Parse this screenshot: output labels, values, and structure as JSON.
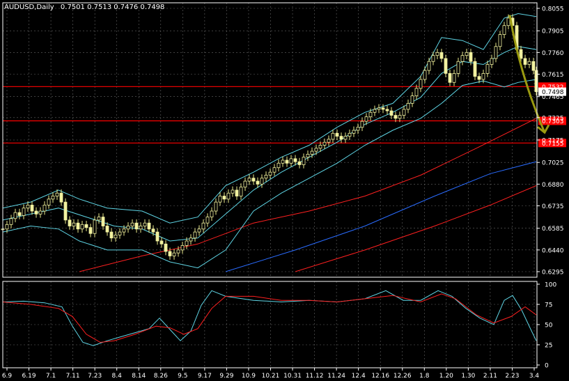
{
  "chart_data": {
    "type": "candlestick",
    "symbol_label": "AUDUSD,Daily",
    "ohlc_label": "0.7501 0.7513 0.7476 0.7498",
    "y_ticks": [
      "0.8055",
      "0.7905",
      "0.7760",
      "0.7615",
      "0.7465",
      "0.7325",
      "0.7175",
      "0.7025",
      "0.6880",
      "0.6735",
      "0.6585",
      "0.6440",
      "0.6295"
    ],
    "ylim": [
      0.6295,
      0.8055
    ],
    "x_ticks": [
      "6.9",
      "6.19",
      "7.1",
      "7.11",
      "7.23",
      "8.4",
      "8.14",
      "8.26",
      "9.5",
      "9.17",
      "9.29",
      "10.9",
      "10.21",
      "10.31",
      "11.12",
      "11.24",
      "12.4",
      "12.16",
      "12.26",
      "1.8",
      "1.20",
      "1.30",
      "2.11",
      "2.23",
      "3.4"
    ],
    "current_price": "0.7498",
    "levels": [
      {
        "label": "0.7532",
        "value": 0.7532,
        "color": "#ff0000"
      },
      {
        "label": "0.7303",
        "value": 0.7303,
        "color": "#ff0000"
      },
      {
        "label": "0.7155",
        "value": 0.7155,
        "color": "#ff0000"
      }
    ],
    "price_series": [
      {
        "x": 0,
        "y": 0.658
      },
      {
        "x": 6,
        "y": 0.661
      },
      {
        "x": 12,
        "y": 0.665
      },
      {
        "x": 18,
        "y": 0.669
      },
      {
        "x": 24,
        "y": 0.667
      },
      {
        "x": 30,
        "y": 0.672
      },
      {
        "x": 36,
        "y": 0.674
      },
      {
        "x": 42,
        "y": 0.67
      },
      {
        "x": 48,
        "y": 0.668
      },
      {
        "x": 54,
        "y": 0.67
      },
      {
        "x": 60,
        "y": 0.674
      },
      {
        "x": 66,
        "y": 0.678
      },
      {
        "x": 72,
        "y": 0.68
      },
      {
        "x": 78,
        "y": 0.682
      },
      {
        "x": 84,
        "y": 0.676
      },
      {
        "x": 90,
        "y": 0.664
      },
      {
        "x": 96,
        "y": 0.66
      },
      {
        "x": 102,
        "y": 0.662
      },
      {
        "x": 108,
        "y": 0.658
      },
      {
        "x": 114,
        "y": 0.661
      },
      {
        "x": 120,
        "y": 0.659
      },
      {
        "x": 126,
        "y": 0.655
      },
      {
        "x": 132,
        "y": 0.664
      },
      {
        "x": 138,
        "y": 0.666
      },
      {
        "x": 144,
        "y": 0.66
      },
      {
        "x": 150,
        "y": 0.656
      },
      {
        "x": 156,
        "y": 0.652
      },
      {
        "x": 162,
        "y": 0.654
      },
      {
        "x": 168,
        "y": 0.656
      },
      {
        "x": 174,
        "y": 0.658
      },
      {
        "x": 180,
        "y": 0.66
      },
      {
        "x": 186,
        "y": 0.662
      },
      {
        "x": 192,
        "y": 0.658
      },
      {
        "x": 198,
        "y": 0.66
      },
      {
        "x": 204,
        "y": 0.662
      },
      {
        "x": 210,
        "y": 0.658
      },
      {
        "x": 216,
        "y": 0.656
      },
      {
        "x": 222,
        "y": 0.65
      },
      {
        "x": 228,
        "y": 0.648
      },
      {
        "x": 234,
        "y": 0.643
      },
      {
        "x": 240,
        "y": 0.64
      },
      {
        "x": 246,
        "y": 0.642
      },
      {
        "x": 252,
        "y": 0.644
      },
      {
        "x": 258,
        "y": 0.647
      },
      {
        "x": 264,
        "y": 0.65
      },
      {
        "x": 270,
        "y": 0.652
      },
      {
        "x": 276,
        "y": 0.656
      },
      {
        "x": 282,
        "y": 0.658
      },
      {
        "x": 288,
        "y": 0.662
      },
      {
        "x": 294,
        "y": 0.666
      },
      {
        "x": 300,
        "y": 0.67
      },
      {
        "x": 306,
        "y": 0.676
      },
      {
        "x": 312,
        "y": 0.68
      },
      {
        "x": 318,
        "y": 0.678
      },
      {
        "x": 324,
        "y": 0.682
      },
      {
        "x": 330,
        "y": 0.684
      },
      {
        "x": 336,
        "y": 0.68
      },
      {
        "x": 342,
        "y": 0.686
      },
      {
        "x": 348,
        "y": 0.69
      },
      {
        "x": 354,
        "y": 0.692
      },
      {
        "x": 360,
        "y": 0.69
      },
      {
        "x": 366,
        "y": 0.688
      },
      {
        "x": 372,
        "y": 0.692
      },
      {
        "x": 378,
        "y": 0.694
      },
      {
        "x": 384,
        "y": 0.696
      },
      {
        "x": 390,
        "y": 0.699
      },
      {
        "x": 396,
        "y": 0.702
      },
      {
        "x": 402,
        "y": 0.704
      },
      {
        "x": 408,
        "y": 0.702
      },
      {
        "x": 414,
        "y": 0.705
      },
      {
        "x": 420,
        "y": 0.703
      },
      {
        "x": 426,
        "y": 0.701
      },
      {
        "x": 432,
        "y": 0.706
      },
      {
        "x": 438,
        "y": 0.708
      },
      {
        "x": 444,
        "y": 0.71
      },
      {
        "x": 450,
        "y": 0.712
      },
      {
        "x": 456,
        "y": 0.714
      },
      {
        "x": 462,
        "y": 0.716
      },
      {
        "x": 468,
        "y": 0.718
      },
      {
        "x": 474,
        "y": 0.722
      },
      {
        "x": 480,
        "y": 0.72
      },
      {
        "x": 486,
        "y": 0.718
      },
      {
        "x": 492,
        "y": 0.72
      },
      {
        "x": 498,
        "y": 0.722
      },
      {
        "x": 504,
        "y": 0.724
      },
      {
        "x": 510,
        "y": 0.726
      },
      {
        "x": 516,
        "y": 0.73
      },
      {
        "x": 522,
        "y": 0.733
      },
      {
        "x": 528,
        "y": 0.736
      },
      {
        "x": 534,
        "y": 0.738
      },
      {
        "x": 540,
        "y": 0.739
      },
      {
        "x": 546,
        "y": 0.738
      },
      {
        "x": 552,
        "y": 0.737
      },
      {
        "x": 558,
        "y": 0.734
      },
      {
        "x": 564,
        "y": 0.732
      },
      {
        "x": 570,
        "y": 0.734
      },
      {
        "x": 576,
        "y": 0.738
      },
      {
        "x": 582,
        "y": 0.742
      },
      {
        "x": 588,
        "y": 0.747
      },
      {
        "x": 594,
        "y": 0.752
      },
      {
        "x": 600,
        "y": 0.758
      },
      {
        "x": 606,
        "y": 0.764
      },
      {
        "x": 612,
        "y": 0.77
      },
      {
        "x": 618,
        "y": 0.774
      },
      {
        "x": 624,
        "y": 0.776
      },
      {
        "x": 630,
        "y": 0.772
      },
      {
        "x": 636,
        "y": 0.762
      },
      {
        "x": 642,
        "y": 0.756
      },
      {
        "x": 648,
        "y": 0.762
      },
      {
        "x": 654,
        "y": 0.77
      },
      {
        "x": 660,
        "y": 0.774
      },
      {
        "x": 666,
        "y": 0.776
      },
      {
        "x": 672,
        "y": 0.77
      },
      {
        "x": 678,
        "y": 0.76
      },
      {
        "x": 684,
        "y": 0.758
      },
      {
        "x": 690,
        "y": 0.762
      },
      {
        "x": 696,
        "y": 0.768
      },
      {
        "x": 702,
        "y": 0.772
      },
      {
        "x": 708,
        "y": 0.78
      },
      {
        "x": 714,
        "y": 0.788
      },
      {
        "x": 720,
        "y": 0.794
      },
      {
        "x": 726,
        "y": 0.799
      },
      {
        "x": 732,
        "y": 0.794
      },
      {
        "x": 738,
        "y": 0.778
      },
      {
        "x": 744,
        "y": 0.772
      },
      {
        "x": 750,
        "y": 0.768
      },
      {
        "x": 756,
        "y": 0.77
      },
      {
        "x": 762,
        "y": 0.764
      },
      {
        "x": 766,
        "y": 0.7498
      }
    ],
    "bollinger_upper": [
      {
        "x": 0,
        "y": 0.672
      },
      {
        "x": 40,
        "y": 0.676
      },
      {
        "x": 80,
        "y": 0.684
      },
      {
        "x": 110,
        "y": 0.678
      },
      {
        "x": 150,
        "y": 0.672
      },
      {
        "x": 200,
        "y": 0.67
      },
      {
        "x": 240,
        "y": 0.662
      },
      {
        "x": 280,
        "y": 0.666
      },
      {
        "x": 320,
        "y": 0.687
      },
      {
        "x": 360,
        "y": 0.696
      },
      {
        "x": 400,
        "y": 0.706
      },
      {
        "x": 440,
        "y": 0.714
      },
      {
        "x": 480,
        "y": 0.726
      },
      {
        "x": 520,
        "y": 0.736
      },
      {
        "x": 560,
        "y": 0.742
      },
      {
        "x": 600,
        "y": 0.76
      },
      {
        "x": 630,
        "y": 0.786
      },
      {
        "x": 660,
        "y": 0.784
      },
      {
        "x": 690,
        "y": 0.778
      },
      {
        "x": 720,
        "y": 0.799
      },
      {
        "x": 740,
        "y": 0.802
      },
      {
        "x": 766,
        "y": 0.8
      }
    ],
    "bollinger_middle": [
      {
        "x": 0,
        "y": 0.664
      },
      {
        "x": 40,
        "y": 0.668
      },
      {
        "x": 80,
        "y": 0.672
      },
      {
        "x": 120,
        "y": 0.666
      },
      {
        "x": 160,
        "y": 0.66
      },
      {
        "x": 200,
        "y": 0.658
      },
      {
        "x": 240,
        "y": 0.65
      },
      {
        "x": 280,
        "y": 0.652
      },
      {
        "x": 320,
        "y": 0.668
      },
      {
        "x": 360,
        "y": 0.684
      },
      {
        "x": 400,
        "y": 0.696
      },
      {
        "x": 440,
        "y": 0.706
      },
      {
        "x": 480,
        "y": 0.716
      },
      {
        "x": 520,
        "y": 0.728
      },
      {
        "x": 560,
        "y": 0.736
      },
      {
        "x": 600,
        "y": 0.746
      },
      {
        "x": 630,
        "y": 0.762
      },
      {
        "x": 660,
        "y": 0.77
      },
      {
        "x": 690,
        "y": 0.768
      },
      {
        "x": 720,
        "y": 0.776
      },
      {
        "x": 740,
        "y": 0.78
      },
      {
        "x": 766,
        "y": 0.778
      }
    ],
    "bollinger_lower": [
      {
        "x": 0,
        "y": 0.656
      },
      {
        "x": 40,
        "y": 0.66
      },
      {
        "x": 80,
        "y": 0.658
      },
      {
        "x": 110,
        "y": 0.65
      },
      {
        "x": 150,
        "y": 0.644
      },
      {
        "x": 200,
        "y": 0.644
      },
      {
        "x": 240,
        "y": 0.636
      },
      {
        "x": 280,
        "y": 0.632
      },
      {
        "x": 320,
        "y": 0.644
      },
      {
        "x": 360,
        "y": 0.67
      },
      {
        "x": 400,
        "y": 0.682
      },
      {
        "x": 440,
        "y": 0.692
      },
      {
        "x": 480,
        "y": 0.702
      },
      {
        "x": 520,
        "y": 0.714
      },
      {
        "x": 560,
        "y": 0.724
      },
      {
        "x": 600,
        "y": 0.732
      },
      {
        "x": 630,
        "y": 0.742
      },
      {
        "x": 660,
        "y": 0.754
      },
      {
        "x": 690,
        "y": 0.757
      },
      {
        "x": 720,
        "y": 0.753
      },
      {
        "x": 740,
        "y": 0.756
      },
      {
        "x": 766,
        "y": 0.758
      }
    ],
    "ma_red_1": [
      {
        "x": 110,
        "y": 0.6295
      },
      {
        "x": 200,
        "y": 0.64
      },
      {
        "x": 280,
        "y": 0.648
      },
      {
        "x": 360,
        "y": 0.662
      },
      {
        "x": 440,
        "y": 0.67
      },
      {
        "x": 520,
        "y": 0.68
      },
      {
        "x": 600,
        "y": 0.694
      },
      {
        "x": 680,
        "y": 0.712
      },
      {
        "x": 766,
        "y": 0.732
      }
    ],
    "ma_blue": [
      {
        "x": 320,
        "y": 0.6295
      },
      {
        "x": 420,
        "y": 0.644
      },
      {
        "x": 520,
        "y": 0.66
      },
      {
        "x": 620,
        "y": 0.68
      },
      {
        "x": 700,
        "y": 0.695
      },
      {
        "x": 766,
        "y": 0.703
      }
    ],
    "ma_red_2": [
      {
        "x": 420,
        "y": 0.6295
      },
      {
        "x": 520,
        "y": 0.644
      },
      {
        "x": 620,
        "y": 0.66
      },
      {
        "x": 700,
        "y": 0.674
      },
      {
        "x": 766,
        "y": 0.687
      }
    ],
    "arrow": {
      "from": {
        "x": 728,
        "y": 0.801
      },
      "to": {
        "x": 782,
        "y": 0.7225
      },
      "color": "#9a9a10"
    },
    "oscillator": {
      "y_ticks": [
        "100",
        "75",
        "50",
        "25",
        "0"
      ],
      "ylim": [
        0,
        100
      ],
      "line_a": [
        {
          "x": 0,
          "y": 78
        },
        {
          "x": 30,
          "y": 79
        },
        {
          "x": 60,
          "y": 77
        },
        {
          "x": 85,
          "y": 72
        },
        {
          "x": 100,
          "y": 48
        },
        {
          "x": 115,
          "y": 28
        },
        {
          "x": 130,
          "y": 24
        },
        {
          "x": 150,
          "y": 30
        },
        {
          "x": 170,
          "y": 35
        },
        {
          "x": 190,
          "y": 40
        },
        {
          "x": 210,
          "y": 45
        },
        {
          "x": 225,
          "y": 58
        },
        {
          "x": 240,
          "y": 44
        },
        {
          "x": 255,
          "y": 30
        },
        {
          "x": 270,
          "y": 42
        },
        {
          "x": 285,
          "y": 74
        },
        {
          "x": 300,
          "y": 92
        },
        {
          "x": 320,
          "y": 85
        },
        {
          "x": 360,
          "y": 80
        },
        {
          "x": 400,
          "y": 78
        },
        {
          "x": 440,
          "y": 80
        },
        {
          "x": 480,
          "y": 78
        },
        {
          "x": 520,
          "y": 82
        },
        {
          "x": 550,
          "y": 92
        },
        {
          "x": 575,
          "y": 80
        },
        {
          "x": 600,
          "y": 80
        },
        {
          "x": 625,
          "y": 92
        },
        {
          "x": 645,
          "y": 85
        },
        {
          "x": 665,
          "y": 70
        },
        {
          "x": 685,
          "y": 58
        },
        {
          "x": 705,
          "y": 50
        },
        {
          "x": 720,
          "y": 80
        },
        {
          "x": 732,
          "y": 86
        },
        {
          "x": 745,
          "y": 68
        },
        {
          "x": 757,
          "y": 46
        },
        {
          "x": 766,
          "y": 30
        }
      ],
      "line_b": [
        {
          "x": 0,
          "y": 78
        },
        {
          "x": 40,
          "y": 75
        },
        {
          "x": 80,
          "y": 70
        },
        {
          "x": 100,
          "y": 60
        },
        {
          "x": 120,
          "y": 38
        },
        {
          "x": 140,
          "y": 28
        },
        {
          "x": 160,
          "y": 30
        },
        {
          "x": 190,
          "y": 38
        },
        {
          "x": 220,
          "y": 48
        },
        {
          "x": 240,
          "y": 46
        },
        {
          "x": 260,
          "y": 38
        },
        {
          "x": 280,
          "y": 45
        },
        {
          "x": 300,
          "y": 70
        },
        {
          "x": 320,
          "y": 85
        },
        {
          "x": 360,
          "y": 85
        },
        {
          "x": 400,
          "y": 80
        },
        {
          "x": 440,
          "y": 80
        },
        {
          "x": 480,
          "y": 78
        },
        {
          "x": 520,
          "y": 82
        },
        {
          "x": 560,
          "y": 86
        },
        {
          "x": 600,
          "y": 78
        },
        {
          "x": 630,
          "y": 88
        },
        {
          "x": 650,
          "y": 82
        },
        {
          "x": 680,
          "y": 62
        },
        {
          "x": 705,
          "y": 52
        },
        {
          "x": 730,
          "y": 60
        },
        {
          "x": 750,
          "y": 72
        },
        {
          "x": 766,
          "y": 62
        }
      ]
    }
  }
}
